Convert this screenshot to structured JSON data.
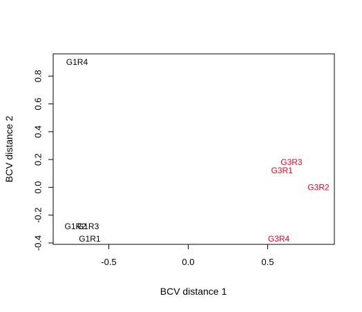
{
  "chart_data": {
    "type": "scatter",
    "title": "",
    "xlabel": "BCV distance 1",
    "ylabel": "BCV distance 2",
    "xlim": [
      -0.85,
      0.92
    ],
    "ylim": [
      -0.41,
      0.96
    ],
    "x_ticks": [
      {
        "value": -0.5,
        "label": "-0.5"
      },
      {
        "value": 0.0,
        "label": "0.0"
      },
      {
        "value": 0.5,
        "label": "0.5"
      }
    ],
    "y_ticks": [
      {
        "value": -0.4,
        "label": "-0.4"
      },
      {
        "value": -0.2,
        "label": "-0.2"
      },
      {
        "value": 0.0,
        "label": "0.0"
      },
      {
        "value": 0.2,
        "label": "0.2"
      },
      {
        "value": 0.4,
        "label": "0.4"
      },
      {
        "value": 0.6,
        "label": "0.6"
      },
      {
        "value": 0.8,
        "label": "0.8"
      }
    ],
    "grid": false,
    "points": [
      {
        "label": "G1R4",
        "x": -0.7,
        "y": 0.9,
        "color": "#000000"
      },
      {
        "label": "G1R2",
        "x": -0.71,
        "y": -0.28,
        "color": "#000000"
      },
      {
        "label": "G1R3",
        "x": -0.63,
        "y": -0.28,
        "color": "#000000"
      },
      {
        "label": "G1R1",
        "x": -0.62,
        "y": -0.37,
        "color": "#000000"
      },
      {
        "label": "G3R3",
        "x": 0.65,
        "y": 0.18,
        "color": "#e8001c"
      },
      {
        "label": "G3R1",
        "x": 0.59,
        "y": 0.12,
        "color": "#e8001c"
      },
      {
        "label": "G3R2",
        "x": 0.82,
        "y": 0.0,
        "color": "#e8001c"
      },
      {
        "label": "G3R4",
        "x": 0.57,
        "y": -0.37,
        "color": "#e8001c"
      }
    ]
  }
}
